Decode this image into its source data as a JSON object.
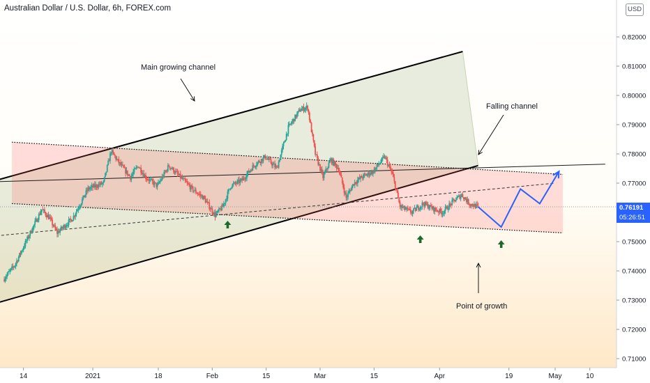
{
  "header": {
    "symbol_title": "Australian Dollar / U.S. Dollar, 6h, FOREX.com",
    "currency": "USD"
  },
  "price_axis": {
    "last_price": "0.76191",
    "countdown": "05:26:51"
  },
  "annotations": {
    "main_channel": "Main growing channel",
    "falling_channel": "Falling channel",
    "point_of_growth": "Point of growth"
  },
  "chart_data": {
    "type": "candlestick",
    "title": "Australian Dollar / U.S. Dollar, 6h, FOREX.com",
    "y_axis": {
      "ticks": [
        0.71,
        0.72,
        0.73,
        0.74,
        0.75,
        0.76,
        0.77,
        0.78,
        0.79,
        0.8,
        0.81,
        0.82
      ],
      "tick_labels": [
        "0.71000",
        "0.72000",
        "0.73000",
        "0.74000",
        "0.75000",
        "0.76000",
        "0.77000",
        "0.78000",
        "0.79000",
        "0.80000",
        "0.81000",
        "0.82000"
      ],
      "range": [
        0.7075,
        0.8305
      ]
    },
    "x_axis": {
      "ticks": [
        "2020-12-14",
        "2021-01-01",
        "2021-01-18",
        "2021-02-01",
        "2021-02-15",
        "2021-03-01",
        "2021-03-15",
        "2021-04-01",
        "2021-04-19",
        "2021-05-01",
        "2021-05-10"
      ],
      "tick_labels": [
        "14",
        "2021",
        "18",
        "Feb",
        "15",
        "Mar",
        "15",
        "Apr",
        "19",
        "May",
        "10"
      ]
    },
    "last_price": 0.76191,
    "price_path": [
      [
        "2020-12-09",
        0.737
      ],
      [
        "2020-12-12",
        0.742
      ],
      [
        "2020-12-16",
        0.753
      ],
      [
        "2020-12-19",
        0.761
      ],
      [
        "2020-12-21",
        0.758
      ],
      [
        "2020-12-23",
        0.753
      ],
      [
        "2020-12-27",
        0.758
      ],
      [
        "2020-12-31",
        0.768
      ],
      [
        "2021-01-04",
        0.77
      ],
      [
        "2021-01-06",
        0.781
      ],
      [
        "2021-01-08",
        0.777
      ],
      [
        "2021-01-11",
        0.772
      ],
      [
        "2021-01-13",
        0.776
      ],
      [
        "2021-01-15",
        0.772
      ],
      [
        "2021-01-18",
        0.769
      ],
      [
        "2021-01-21",
        0.776
      ],
      [
        "2021-01-24",
        0.772
      ],
      [
        "2021-01-27",
        0.768
      ],
      [
        "2021-01-30",
        0.765
      ],
      [
        "2021-02-02",
        0.759
      ],
      [
        "2021-02-04",
        0.762
      ],
      [
        "2021-02-06",
        0.769
      ],
      [
        "2021-02-09",
        0.771
      ],
      [
        "2021-02-12",
        0.776
      ],
      [
        "2021-02-15",
        0.779
      ],
      [
        "2021-02-18",
        0.775
      ],
      [
        "2021-02-21",
        0.789
      ],
      [
        "2021-02-24",
        0.795
      ],
      [
        "2021-02-26",
        0.796
      ],
      [
        "2021-02-28",
        0.78
      ],
      [
        "2021-03-02",
        0.772
      ],
      [
        "2021-03-04",
        0.778
      ],
      [
        "2021-03-06",
        0.775
      ],
      [
        "2021-03-08",
        0.765
      ],
      [
        "2021-03-10",
        0.77
      ],
      [
        "2021-03-12",
        0.772
      ],
      [
        "2021-03-15",
        0.774
      ],
      [
        "2021-03-18",
        0.779
      ],
      [
        "2021-03-20",
        0.773
      ],
      [
        "2021-03-22",
        0.762
      ],
      [
        "2021-03-25",
        0.76
      ],
      [
        "2021-03-28",
        0.763
      ],
      [
        "2021-03-31",
        0.761
      ],
      [
        "2021-04-02",
        0.76
      ],
      [
        "2021-04-05",
        0.764
      ],
      [
        "2021-04-07",
        0.766
      ],
      [
        "2021-04-09",
        0.763
      ],
      [
        "2021-04-11",
        0.7619
      ]
    ],
    "projection": [
      [
        "2021-04-11",
        0.7619
      ],
      [
        "2021-04-17",
        0.755
      ],
      [
        "2021-04-22",
        0.768
      ],
      [
        "2021-04-27",
        0.763
      ],
      [
        "2021-05-02",
        0.774
      ]
    ],
    "drawings": {
      "main_growing_channel": {
        "upper": [
          [
            "2020-12-07",
            0.771
          ],
          [
            "2021-04-07",
            0.815
          ]
        ],
        "lower": [
          [
            "2020-12-07",
            0.729
          ],
          [
            "2021-04-11",
            0.776
          ]
        ]
      },
      "falling_channel": {
        "upper": [
          [
            "2020-12-11",
            0.784
          ],
          [
            "2021-05-03",
            0.773
          ]
        ],
        "lower": [
          [
            "2020-12-11",
            0.763
          ],
          [
            "2021-05-03",
            0.753
          ]
        ]
      },
      "horizontal_trendline": [
        [
          "2020-12-07",
          0.7705
        ],
        [
          "2021-05-14",
          0.7765
        ]
      ],
      "rising_dashed_line": [
        [
          "2020-12-07",
          0.752
        ],
        [
          "2021-05-01",
          0.77
        ]
      ]
    },
    "support_arrows": [
      "2021-02-05",
      "2021-03-27",
      "2021-04-17"
    ],
    "legend": "none",
    "grid": false
  },
  "colors": {
    "bull": "#26a69a",
    "bear": "#ef5350",
    "projection": "#2962ff",
    "arrow": "#1b6a2b",
    "axis_text": "#131722",
    "last_price_line": "#9598a1"
  }
}
